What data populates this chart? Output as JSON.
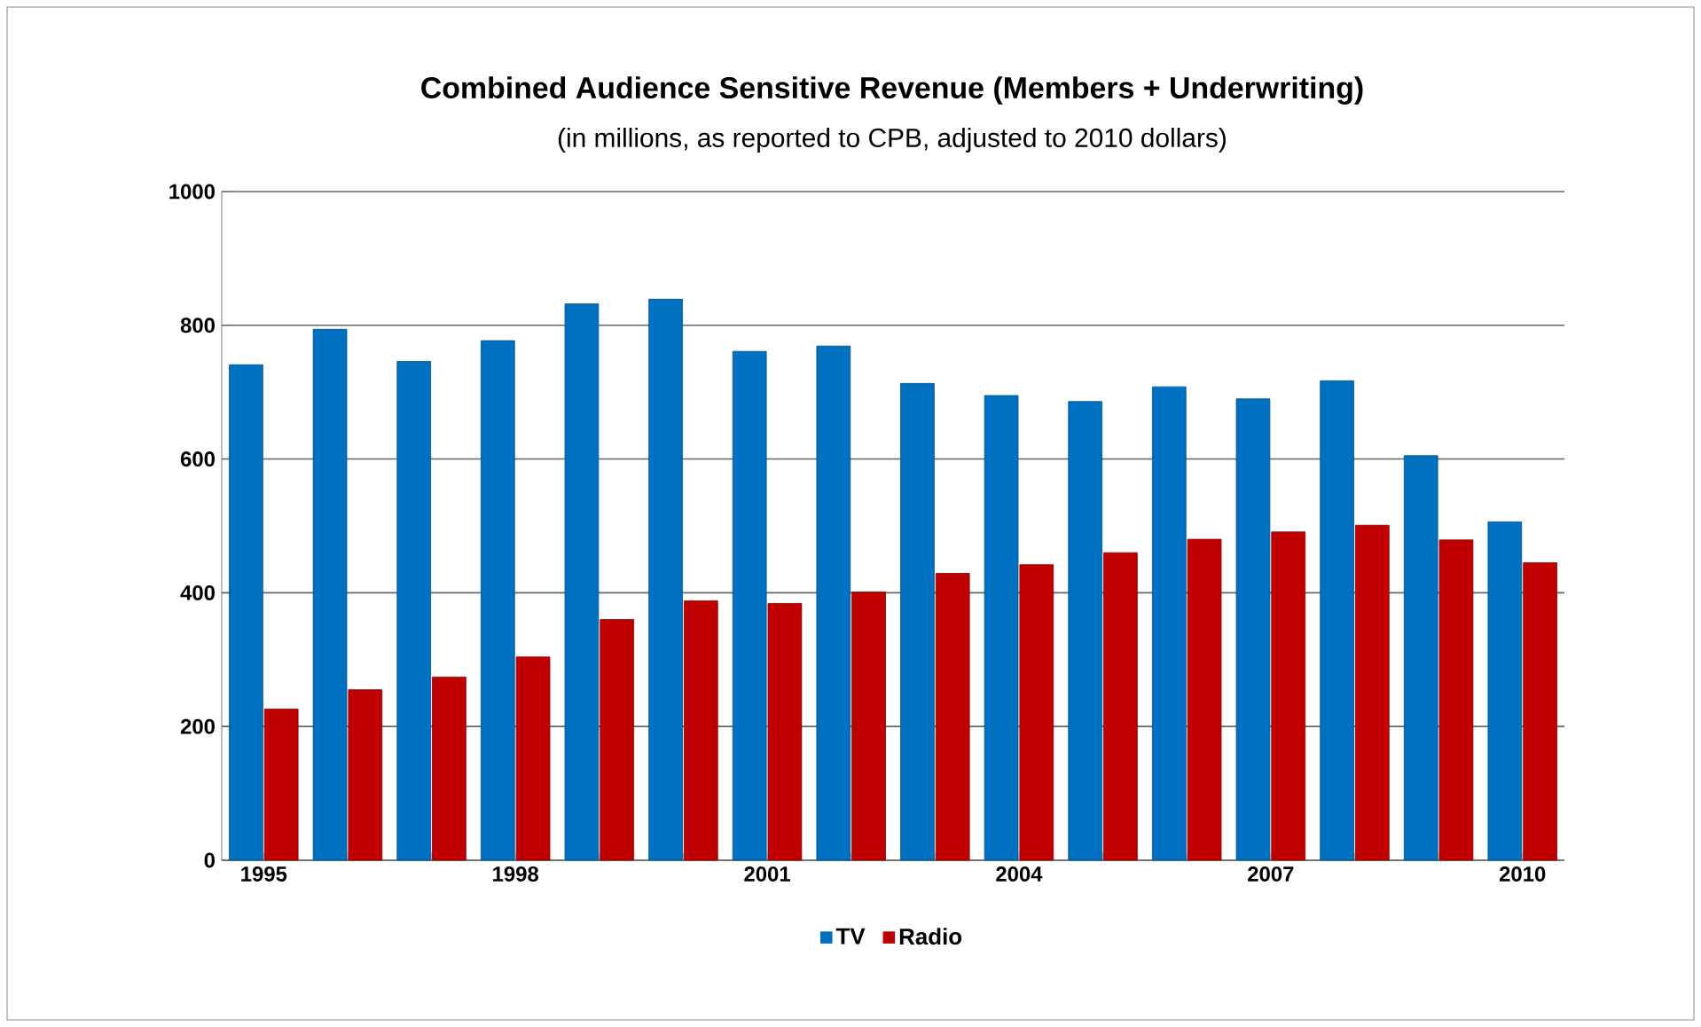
{
  "chart_data": {
    "type": "bar",
    "title": "Combined Audience Sensitive Revenue (Members + Underwriting)",
    "subtitle": "(in millions, as reported to CPB, adjusted to 2010 dollars)",
    "categories": [
      "1995",
      null,
      null,
      "1998",
      null,
      null,
      "2001",
      null,
      null,
      "2004",
      null,
      null,
      "2007",
      null,
      null,
      "2010"
    ],
    "series": [
      {
        "name": "TV",
        "color": "#0070c0",
        "values": [
          741,
          794,
          746,
          777,
          832,
          839,
          761,
          769,
          713,
          695,
          686,
          708,
          690,
          717,
          605,
          506
        ]
      },
      {
        "name": "Radio",
        "color": "#c00000",
        "values": [
          226,
          255,
          274,
          304,
          360,
          388,
          384,
          401,
          429,
          442,
          460,
          480,
          491,
          501,
          479,
          445
        ]
      }
    ],
    "ylim": [
      0,
      1000
    ],
    "yticks": [
      0,
      200,
      400,
      600,
      800,
      1000
    ],
    "grid": "y",
    "legend": "bottom"
  }
}
